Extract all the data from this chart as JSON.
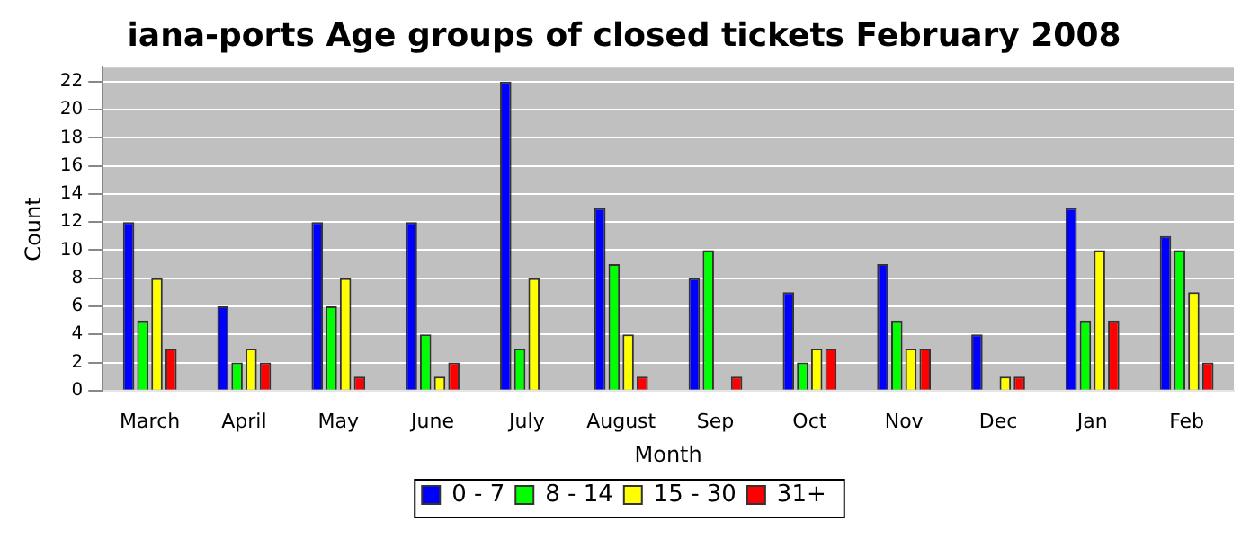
{
  "chart_data": {
    "type": "bar",
    "title": "iana-ports Age groups of closed tickets February 2008",
    "xlabel": "Month",
    "ylabel": "Count",
    "categories": [
      "March",
      "April",
      "May",
      "June",
      "July",
      "August",
      "Sep",
      "Oct",
      "Nov",
      "Dec",
      "Jan",
      "Feb"
    ],
    "series": [
      {
        "name": "0 - 7",
        "color": "#0000ff",
        "values": [
          12,
          6,
          12,
          12,
          22,
          13,
          8,
          7,
          9,
          4,
          13,
          11
        ]
      },
      {
        "name": "8 - 14",
        "color": "#00ff00",
        "values": [
          5,
          2,
          6,
          4,
          3,
          9,
          10,
          2,
          5,
          0,
          5,
          10
        ]
      },
      {
        "name": "15 - 30",
        "color": "#ffff00",
        "values": [
          8,
          3,
          8,
          1,
          8,
          4,
          0,
          3,
          3,
          1,
          10,
          7
        ]
      },
      {
        "name": "31+",
        "color": "#ff0000",
        "values": [
          3,
          2,
          1,
          2,
          0,
          1,
          1,
          3,
          3,
          1,
          5,
          2
        ]
      }
    ],
    "ylim": [
      0,
      23
    ],
    "yticks": [
      0,
      2,
      4,
      6,
      8,
      10,
      12,
      14,
      16,
      18,
      20,
      22
    ],
    "grid": "y",
    "legend": "bottom"
  }
}
